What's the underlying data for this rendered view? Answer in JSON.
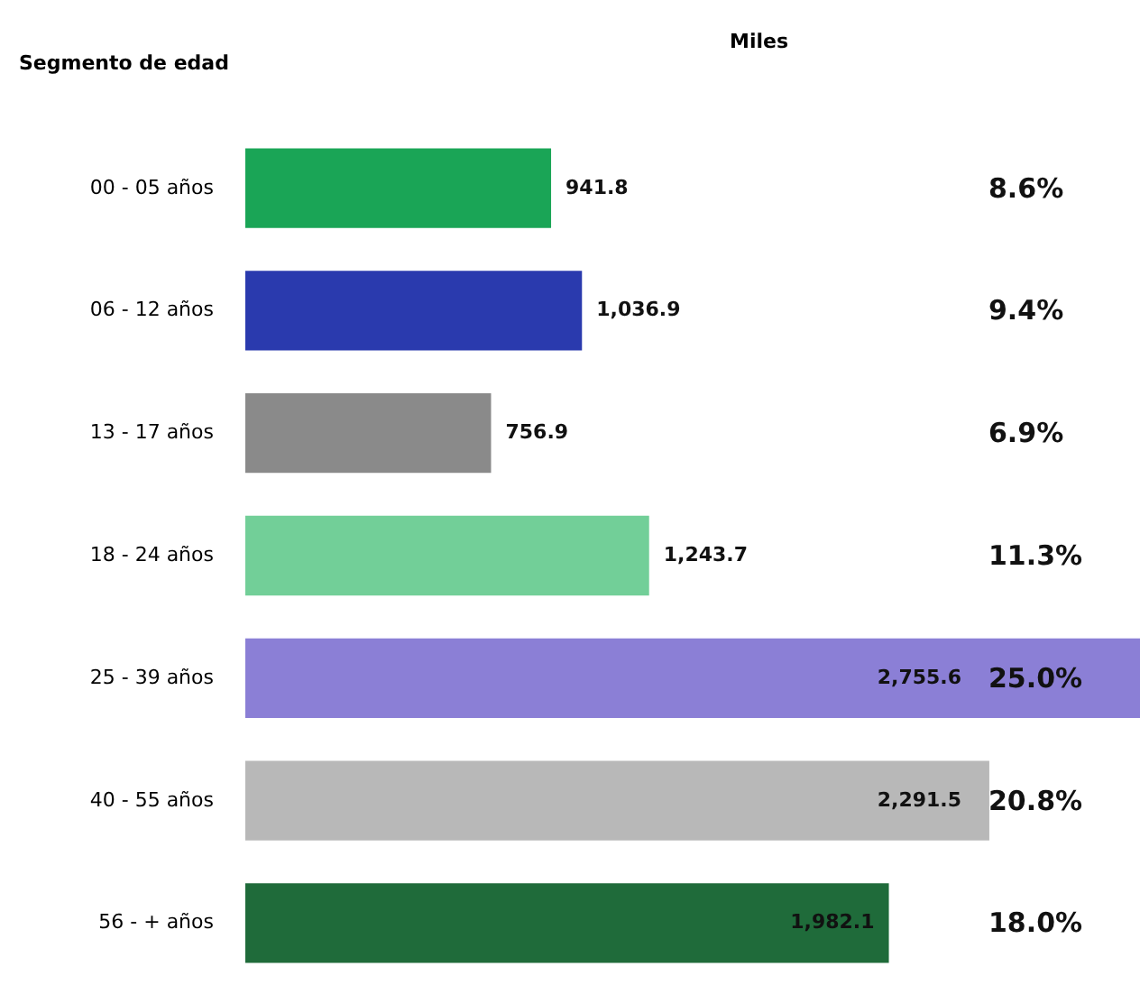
{
  "chart_data": {
    "type": "bar",
    "orientation": "horizontal",
    "xlabel": "Miles",
    "ylabel": "Segmento de edad",
    "categories": [
      "00 - 05 años",
      "06 - 12 años",
      "13 - 17 años",
      "18 - 24 años",
      "25 - 39 años",
      "40 - 55 años",
      "56 - + años"
    ],
    "values": [
      941.8,
      1036.9,
      756.9,
      1243.7,
      2755.6,
      2291.5,
      1982.1
    ],
    "value_labels": [
      "941.8",
      "1,036.9",
      "756.9",
      "1,243.7",
      "2,755.6",
      "2,291.5",
      "1,982.1"
    ],
    "colors": [
      "#1aa556",
      "#2a3aae",
      "#8a8a8a",
      "#72cf98",
      "#8b7fd6",
      "#b8b8b8",
      "#1f6b3a"
    ],
    "annotations": [
      "8.6%",
      "9.4%",
      "6.9%",
      "11.3%",
      "25.0%",
      "20.8%",
      "18.0%"
    ]
  }
}
